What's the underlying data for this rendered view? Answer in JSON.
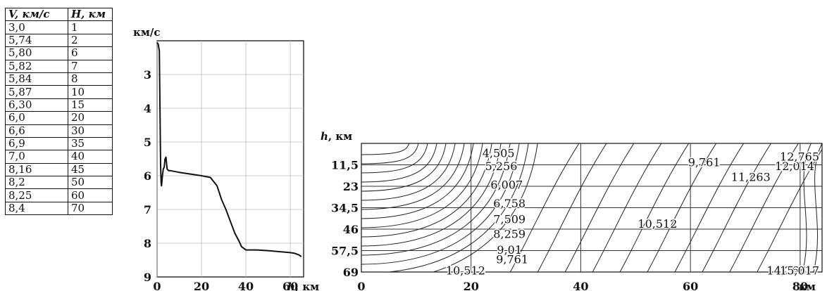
{
  "table": {
    "headers": [
      "V, км/с",
      "H, км"
    ],
    "rows": [
      [
        "3,0",
        "1"
      ],
      [
        "5,74",
        "2"
      ],
      [
        "5,80",
        "6"
      ],
      [
        "5,82",
        "7"
      ],
      [
        "5,84",
        "8"
      ],
      [
        "5,87",
        "10"
      ],
      [
        "6,30",
        "15"
      ],
      [
        "6,0",
        "20"
      ],
      [
        "6,6",
        "30"
      ],
      [
        "6,9",
        "35"
      ],
      [
        "7,0",
        "40"
      ],
      [
        "8,16",
        "45"
      ],
      [
        "8,2",
        "50"
      ],
      [
        "8,25",
        "60"
      ],
      [
        "8,4",
        "70"
      ]
    ]
  },
  "chart_data": [
    {
      "type": "line",
      "title": "",
      "xlabel": "h, км",
      "ylabel": "км/с",
      "xlim": [
        0,
        66
      ],
      "ylim": [
        2,
        9
      ],
      "y_inverted": true,
      "x_ticks": [
        0,
        20,
        40,
        60
      ],
      "y_ticks": [
        3,
        4,
        5,
        6,
        7,
        8,
        9
      ],
      "x_tick_labels": [
        "0",
        "20",
        "40",
        "60"
      ],
      "y_tick_labels": [
        "3",
        "4",
        "5",
        "6",
        "7",
        "8",
        "9"
      ],
      "grid": true,
      "series": [
        {
          "x": [
            0,
            0.5,
            1.0,
            1.3,
            1.6,
            1.8,
            2.0,
            2.4,
            2.8,
            3.2,
            3.6,
            4.0,
            4.5,
            5.2,
            6,
            10,
            15,
            20,
            24,
            27,
            29,
            31,
            33,
            35,
            37,
            38,
            39,
            40,
            45,
            50,
            55,
            60,
            62,
            64,
            65
          ],
          "y": [
            2.05,
            2.1,
            2.3,
            4.0,
            5.7,
            6.2,
            6.3,
            6.0,
            5.8,
            5.75,
            5.5,
            5.45,
            5.8,
            5.85,
            5.85,
            5.9,
            5.95,
            6.0,
            6.05,
            6.3,
            6.7,
            7.0,
            7.35,
            7.7,
            7.95,
            8.1,
            8.15,
            8.2,
            8.2,
            8.22,
            8.25,
            8.28,
            8.3,
            8.35,
            8.4
          ]
        }
      ]
    },
    {
      "type": "contour",
      "title": "",
      "xlabel": "км",
      "ylabel": "h, км",
      "xlim": [
        0,
        84
      ],
      "ylim": [
        0,
        69
      ],
      "y_inverted": true,
      "x_ticks": [
        0,
        20,
        40,
        60,
        80
      ],
      "y_ticks": [
        11.5,
        23,
        34.5,
        46,
        57.5,
        69
      ],
      "x_tick_labels": [
        "0",
        "20",
        "40",
        "60",
        "80"
      ],
      "y_tick_labels": [
        "11,5",
        "23",
        "34,5",
        "46",
        "57,5",
        "69"
      ],
      "grid": true,
      "contour_labels": [
        {
          "text": "4,505",
          "x": 25,
          "y": 5
        },
        {
          "text": "5,256",
          "x": 25.5,
          "y": 12
        },
        {
          "text": "6,007",
          "x": 26.5,
          "y": 22
        },
        {
          "text": "6,758",
          "x": 27,
          "y": 32
        },
        {
          "text": "7,509",
          "x": 27,
          "y": 40.5
        },
        {
          "text": "8,259",
          "x": 27,
          "y": 48.5
        },
        {
          "text": "9,01",
          "x": 27,
          "y": 57
        },
        {
          "text": "9,761",
          "x": 27.5,
          "y": 62
        },
        {
          "text": "10,512",
          "x": 19,
          "y": 68
        },
        {
          "text": "10,512",
          "x": 54,
          "y": 43
        },
        {
          "text": "9,761",
          "x": 62.5,
          "y": 10
        },
        {
          "text": "11,263",
          "x": 71,
          "y": 18
        },
        {
          "text": "12,014",
          "x": 79,
          "y": 12
        },
        {
          "text": "12,765",
          "x": 87,
          "y": 7
        },
        {
          "text": "14,266",
          "x": 77.5,
          "y": 68
        },
        {
          "text": "15,017",
          "x": 85.5,
          "y": 68
        }
      ]
    }
  ]
}
